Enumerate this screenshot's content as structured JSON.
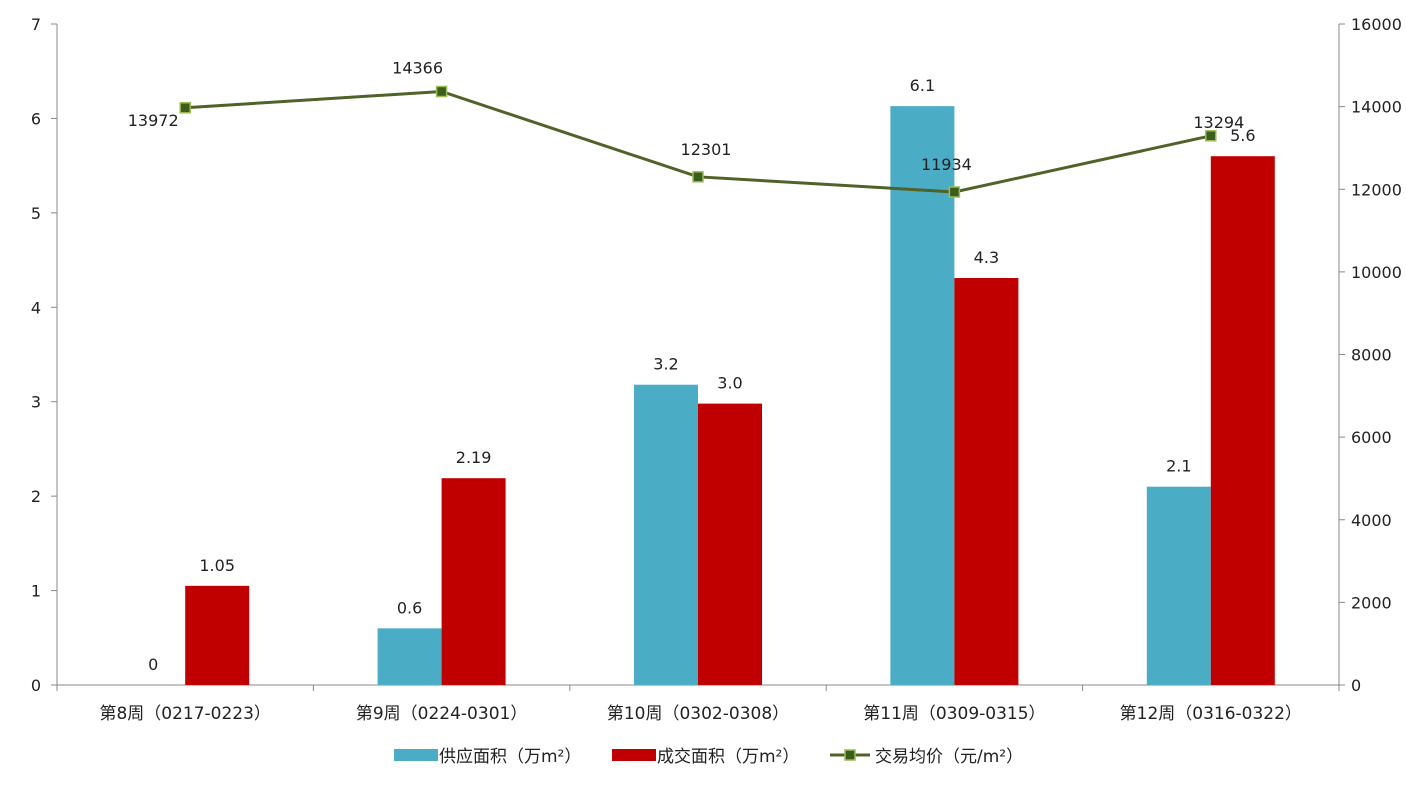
{
  "chart_data": {
    "type": "bar",
    "categories": [
      "第8周（0217-0223）",
      "第9周（0224-0301）",
      "第10周（0302-0308）",
      "第11周（0309-0315）",
      "第12周（0316-0322）"
    ],
    "series": [
      {
        "name": "供应面积（万m²）",
        "type": "bar",
        "axis": "left",
        "color": "#4BACC6",
        "values": [
          0,
          0.6,
          3.18,
          6.13,
          2.1
        ],
        "labels": [
          "0",
          "0.6",
          "3.2",
          "6.1",
          "2.1"
        ]
      },
      {
        "name": "成交面积（万m²）",
        "type": "bar",
        "axis": "left",
        "color": "#C00000",
        "values": [
          1.05,
          2.19,
          2.98,
          4.31,
          5.6
        ],
        "labels": [
          "1.05",
          "2.19",
          "3.0",
          "4.3",
          "5.6"
        ]
      },
      {
        "name": "交易均价（元/m²）",
        "type": "line",
        "axis": "right",
        "color": "#4F6228",
        "marker_color": "#3B5E1B",
        "values": [
          13972,
          14366,
          12301,
          11934,
          13294
        ],
        "labels": [
          "13972",
          "14366",
          "12301",
          "11934",
          "13294"
        ]
      }
    ],
    "left_axis": {
      "min": 0,
      "max": 7,
      "ticks": [
        "0",
        "1",
        "2",
        "3",
        "4",
        "5",
        "6",
        "7"
      ]
    },
    "right_axis": {
      "min": 0,
      "max": 16000,
      "ticks": [
        "0",
        "2000",
        "4000",
        "6000",
        "8000",
        "10000",
        "12000",
        "14000",
        "16000"
      ]
    },
    "grid": false,
    "legend_position": "bottom"
  }
}
